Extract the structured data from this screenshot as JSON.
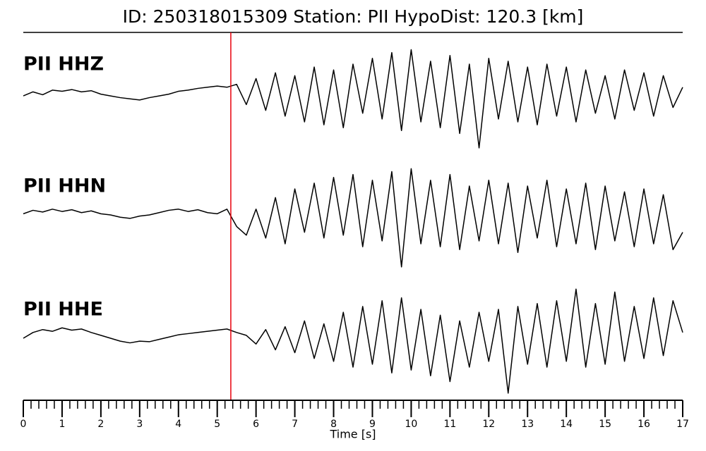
{
  "chart_data": {
    "type": "line",
    "title": "ID: 250318015309   Station: PII   HypoDist:   120.3 [km]",
    "xlabel": "Time [s]",
    "xlim": [
      0,
      17
    ],
    "xticks": [
      0,
      1,
      2,
      3,
      4,
      5,
      6,
      7,
      8,
      9,
      10,
      11,
      12,
      13,
      14,
      15,
      16,
      17
    ],
    "xminor_step": 0.2,
    "ylim": [
      -1,
      1
    ],
    "pick": 5.35,
    "pick_color": "#e8000b",
    "label_color": "#4a9a0a",
    "x": [
      0,
      0.25,
      0.5,
      0.75,
      1,
      1.25,
      1.5,
      1.75,
      2,
      2.25,
      2.5,
      2.75,
      3,
      3.25,
      3.5,
      3.75,
      4,
      4.25,
      4.5,
      4.75,
      5,
      5.25,
      5.5,
      5.75,
      6,
      6.25,
      6.5,
      6.75,
      7,
      7.25,
      7.5,
      7.75,
      8,
      8.25,
      8.5,
      8.75,
      9,
      9.25,
      9.5,
      9.75,
      10,
      10.25,
      10.5,
      10.75,
      11,
      11.25,
      11.5,
      11.75,
      12,
      12.25,
      12.5,
      12.75,
      13,
      13.25,
      13.5,
      13.75,
      14,
      14.25,
      14.5,
      14.75,
      15,
      15.25,
      15.5,
      15.75,
      16,
      16.25,
      16.5,
      16.75,
      17
    ],
    "series": [
      {
        "name": "PII HHZ",
        "color": "#000000",
        "values": [
          -0.05,
          0.02,
          -0.03,
          0.05,
          0.03,
          0.06,
          0.02,
          0.04,
          -0.02,
          -0.05,
          -0.08,
          -0.1,
          -0.12,
          -0.08,
          -0.05,
          -0.02,
          0.03,
          0.05,
          0.08,
          0.1,
          0.12,
          0.1,
          0.15,
          -0.2,
          0.25,
          -0.3,
          0.35,
          -0.4,
          0.3,
          -0.5,
          0.45,
          -0.55,
          0.4,
          -0.6,
          0.5,
          -0.35,
          0.6,
          -0.45,
          0.7,
          -0.65,
          0.75,
          -0.5,
          0.55,
          -0.6,
          0.65,
          -0.7,
          0.5,
          -0.95,
          0.6,
          -0.45,
          0.55,
          -0.5,
          0.45,
          -0.55,
          0.5,
          -0.4,
          0.45,
          -0.5,
          0.4,
          -0.35,
          0.3,
          -0.45,
          0.4,
          -0.3,
          0.35,
          -0.4,
          0.3,
          -0.25,
          0.1
        ]
      },
      {
        "name": "PII HHN",
        "color": "#000000",
        "values": [
          0.02,
          0.08,
          0.05,
          0.1,
          0.06,
          0.09,
          0.04,
          0.07,
          0.02,
          0.0,
          -0.04,
          -0.06,
          -0.02,
          0.0,
          0.04,
          0.08,
          0.1,
          0.06,
          0.09,
          0.04,
          0.02,
          0.1,
          -0.2,
          -0.35,
          0.1,
          -0.4,
          0.3,
          -0.5,
          0.45,
          -0.3,
          0.55,
          -0.4,
          0.65,
          -0.35,
          0.7,
          -0.55,
          0.6,
          -0.45,
          0.75,
          -0.9,
          0.8,
          -0.5,
          0.6,
          -0.55,
          0.7,
          -0.6,
          0.5,
          -0.45,
          0.6,
          -0.5,
          0.55,
          -0.65,
          0.5,
          -0.4,
          0.6,
          -0.55,
          0.45,
          -0.5,
          0.55,
          -0.6,
          0.5,
          -0.45,
          0.4,
          -0.55,
          0.45,
          -0.5,
          0.35,
          -0.6,
          -0.3
        ]
      },
      {
        "name": "PII HHE",
        "color": "#000000",
        "values": [
          0.0,
          0.1,
          0.15,
          0.12,
          0.18,
          0.14,
          0.16,
          0.1,
          0.05,
          0.0,
          -0.05,
          -0.08,
          -0.05,
          -0.06,
          -0.02,
          0.02,
          0.06,
          0.08,
          0.1,
          0.12,
          0.14,
          0.16,
          0.1,
          0.05,
          -0.1,
          0.15,
          -0.2,
          0.2,
          -0.25,
          0.3,
          -0.35,
          0.25,
          -0.4,
          0.45,
          -0.5,
          0.55,
          -0.45,
          0.65,
          -0.6,
          0.7,
          -0.55,
          0.5,
          -0.65,
          0.4,
          -0.75,
          0.3,
          -0.5,
          0.45,
          -0.4,
          0.5,
          -0.95,
          0.55,
          -0.45,
          0.6,
          -0.5,
          0.65,
          -0.4,
          0.85,
          -0.5,
          0.6,
          -0.45,
          0.8,
          -0.4,
          0.55,
          -0.35,
          0.7,
          -0.3,
          0.65,
          0.1
        ]
      }
    ]
  }
}
